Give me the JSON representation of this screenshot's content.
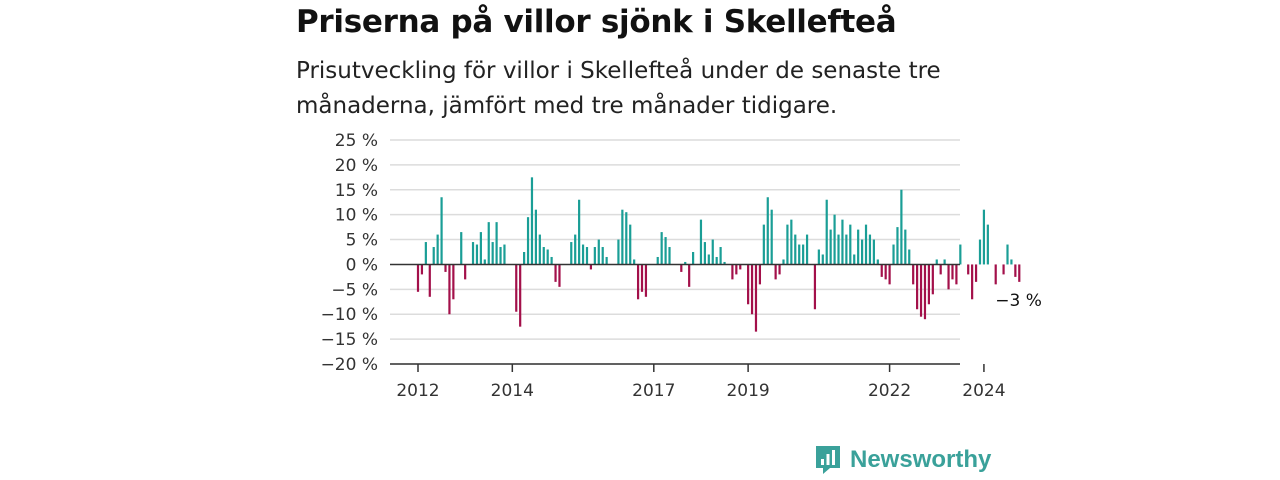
{
  "chart_data": {
    "type": "bar",
    "title": "Priserna på villor sjönk i Skellefteå",
    "subtitle": "Prisutveckling för villor i Skellefteå under de senaste tre månaderna, jämfört med tre månader tidigare.",
    "x_start": "2012-01",
    "x_ticks": [
      {
        "label": "2012",
        "month": "2012-01"
      },
      {
        "label": "2014",
        "month": "2014-01"
      },
      {
        "label": "2017",
        "month": "2017-01"
      },
      {
        "label": "2019",
        "month": "2019-01"
      },
      {
        "label": "2022",
        "month": "2022-01"
      },
      {
        "label": "2024",
        "month": "2024-01"
      }
    ],
    "y_ticks": [
      25,
      20,
      15,
      10,
      5,
      0,
      -5,
      -10,
      -15,
      -20
    ],
    "y_tick_labels": [
      "25 %",
      "20 %",
      "15 %",
      "10 %",
      "5 %",
      "0 %",
      "−5 %",
      "−10 %",
      "−15 %",
      "−20 %"
    ],
    "ylim": [
      -20,
      25
    ],
    "grid": true,
    "colors": {
      "positive": "#1a9e96",
      "negative": "#a3104a"
    },
    "values": [
      -5.5,
      -2,
      4.5,
      -6.5,
      3.5,
      6,
      13.5,
      -1.5,
      -10,
      -7,
      0,
      6.5,
      -3,
      0,
      4.5,
      4,
      6.5,
      1,
      8.5,
      4.5,
      8.5,
      3.5,
      4,
      0,
      0,
      -9.5,
      -12.5,
      2.5,
      9.5,
      17.5,
      11,
      6,
      3.5,
      3,
      1.5,
      -3.5,
      -4.5,
      0,
      0,
      4.5,
      6,
      13,
      4,
      3.5,
      -1,
      3.5,
      5,
      3.5,
      1.5,
      0,
      0,
      5,
      11,
      10.5,
      8,
      1,
      -7,
      -5.5,
      -6.5,
      0,
      0,
      1.5,
      6.5,
      5.5,
      3.5,
      0,
      0,
      -1.5,
      0.5,
      -4.5,
      2.5,
      0,
      9,
      4.5,
      2,
      5,
      1.5,
      3.5,
      0.5,
      0,
      -3,
      -2,
      -1,
      0,
      -8,
      -10,
      -13.5,
      -4,
      8,
      13.5,
      11,
      -3,
      -2,
      1,
      8,
      9,
      6,
      4,
      4,
      6,
      0,
      -9,
      3,
      2,
      13,
      7,
      10,
      6,
      9,
      6,
      8,
      2,
      7,
      5,
      8,
      6,
      5,
      1,
      -2.5,
      -3,
      -4,
      4,
      7.5,
      15,
      7,
      3,
      -4,
      -9,
      -10.5,
      -11,
      -8,
      -6,
      1,
      -2,
      1,
      -5,
      -3,
      -4,
      4,
      0,
      -2,
      -7,
      -3.5,
      5,
      11,
      8,
      0,
      -4,
      0,
      -2,
      4,
      1,
      -2.5,
      -3.5
    ],
    "last_value_label": "−3 %"
  },
  "brand": {
    "name": "Newsworthy",
    "icon": "bar-chart-logo-icon"
  }
}
